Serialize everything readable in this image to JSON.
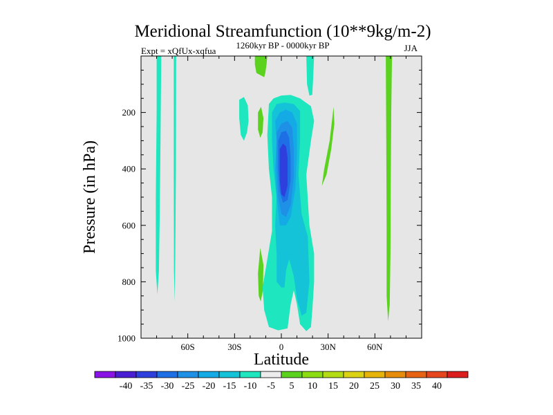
{
  "chart_data": {
    "type": "contour",
    "title": "Meridional Streamfunction (10**9kg/m-2)",
    "experiment": "Expt = xQfUx-xqfua",
    "period": "1260kyr BP - 0000kyr BP",
    "season": "JJA",
    "xlabel": "Latitude",
    "ylabel": "Pressure (in hPa)",
    "xlim": [
      -90,
      90
    ],
    "ylim": [
      0,
      1000
    ],
    "y_inverted": true,
    "x_ticks": [
      {
        "value": -60,
        "label": "60S"
      },
      {
        "value": -30,
        "label": "30S"
      },
      {
        "value": 0,
        "label": "0"
      },
      {
        "value": 30,
        "label": "30N"
      },
      {
        "value": 60,
        "label": "60N"
      }
    ],
    "y_ticks": [
      {
        "value": 200,
        "label": "200"
      },
      {
        "value": 400,
        "label": "400"
      },
      {
        "value": 600,
        "label": "600"
      },
      {
        "value": 800,
        "label": "800"
      },
      {
        "value": 1000,
        "label": "1000"
      }
    ],
    "background_color": "#e6e6e6",
    "colorbar": {
      "colors": [
        "#8a14e6",
        "#4a1ed2",
        "#2f3fde",
        "#1e6ee6",
        "#1e90e6",
        "#14aae6",
        "#14c3d7",
        "#1ee6be",
        "#ececec",
        "#5ad21e",
        "#8cdc14",
        "#b4dc14",
        "#dcd214",
        "#e6b40a",
        "#e68c0a",
        "#e66414",
        "#e6461e",
        "#dc1e1e"
      ],
      "labels": [
        "-40",
        "-35",
        "-30",
        "-25",
        "-20",
        "-15",
        "-10",
        "-5",
        "5",
        "10",
        "15",
        "20",
        "25",
        "30",
        "35",
        "40"
      ]
    },
    "regions": [
      {
        "color": "#1ee6be",
        "lat_lon": [
          [
            -80,
            0
          ],
          [
            -77,
            0
          ],
          [
            -77.5,
            300
          ],
          [
            -78,
            560
          ],
          [
            -78.5,
            760
          ],
          [
            -79.5,
            845
          ],
          [
            -80.5,
            760
          ],
          [
            -80.5,
            500
          ],
          [
            -80,
            200
          ]
        ]
      },
      {
        "color": "#1ee6be",
        "lat_lon": [
          [
            -69,
            0
          ],
          [
            -67.5,
            0
          ],
          [
            -67.6,
            400
          ],
          [
            -68,
            700
          ],
          [
            -68.3,
            870
          ],
          [
            -68.9,
            760
          ],
          [
            -69,
            400
          ]
        ]
      },
      {
        "color": "#5ad21e",
        "lat_lon": [
          [
            -17,
            0
          ],
          [
            -9,
            0
          ],
          [
            -9.5,
            30
          ],
          [
            -10.3,
            60
          ],
          [
            -11,
            75
          ],
          [
            -16,
            60
          ],
          [
            -17,
            30
          ]
        ]
      },
      {
        "color": "#1ee6be",
        "lat_lon": [
          [
            -27,
            155
          ],
          [
            -24,
            145
          ],
          [
            -21.5,
            175
          ],
          [
            -21,
            230
          ],
          [
            -22,
            270
          ],
          [
            -24,
            300
          ],
          [
            -26,
            280
          ],
          [
            -27,
            220
          ]
        ]
      },
      {
        "color": "#5ad21e",
        "lat_lon": [
          [
            -15,
            200
          ],
          [
            -13,
            180
          ],
          [
            -11.5,
            220
          ],
          [
            -12,
            270
          ],
          [
            -13.5,
            290
          ],
          [
            -15,
            260
          ]
        ]
      },
      {
        "color": "#5ad21e",
        "lat_lon": [
          [
            -15,
            770
          ],
          [
            -13.5,
            680
          ],
          [
            -11.5,
            740
          ],
          [
            -11.8,
            830
          ],
          [
            -13.2,
            870
          ],
          [
            -14.5,
            850
          ]
        ]
      },
      {
        "color": "#1ee6be",
        "lat_lon": [
          [
            -8,
            170
          ],
          [
            -5,
            150
          ],
          [
            0,
            140
          ],
          [
            6,
            138
          ],
          [
            12,
            150
          ],
          [
            19,
            178
          ],
          [
            21,
            230
          ],
          [
            19,
            300
          ],
          [
            16,
            420
          ],
          [
            18,
            600
          ],
          [
            21,
            700
          ],
          [
            21,
            800
          ],
          [
            20,
            890
          ],
          [
            19,
            960
          ],
          [
            16,
            975
          ],
          [
            12,
            950
          ],
          [
            10,
            880
          ],
          [
            8,
            830
          ],
          [
            6,
            880
          ],
          [
            4,
            965
          ],
          [
            -2,
            972
          ],
          [
            -8,
            960
          ],
          [
            -11,
            900
          ],
          [
            -12,
            820
          ],
          [
            -9,
            720
          ],
          [
            -6,
            620
          ],
          [
            -6,
            500
          ],
          [
            -8,
            400
          ],
          [
            -9,
            280
          ]
        ]
      },
      {
        "color": "#14c3d7",
        "lat_lon": [
          [
            -6,
            200
          ],
          [
            -3,
            170
          ],
          [
            2,
            165
          ],
          [
            8,
            170
          ],
          [
            12,
            195
          ],
          [
            12,
            300
          ],
          [
            11,
            420
          ],
          [
            13,
            560
          ],
          [
            17,
            640
          ],
          [
            18,
            800
          ],
          [
            16,
            910
          ],
          [
            13,
            920
          ],
          [
            10,
            860
          ],
          [
            8,
            780
          ],
          [
            5,
            720
          ],
          [
            3,
            760
          ],
          [
            2,
            820
          ],
          [
            0,
            820
          ],
          [
            -3,
            800
          ],
          [
            -3,
            700
          ],
          [
            -4,
            600
          ],
          [
            -3,
            500
          ],
          [
            -5,
            400
          ],
          [
            -6,
            300
          ]
        ]
      },
      {
        "color": "#14aae6",
        "lat_lon": [
          [
            -4,
            230
          ],
          [
            -1,
            200
          ],
          [
            3,
            190
          ],
          [
            7,
            200
          ],
          [
            10,
            240
          ],
          [
            10,
            350
          ],
          [
            9,
            470
          ],
          [
            6,
            570
          ],
          [
            3,
            600
          ],
          [
            -1,
            600
          ],
          [
            -3,
            500
          ],
          [
            -4,
            400
          ],
          [
            -3,
            300
          ]
        ]
      },
      {
        "color": "#1e90e6",
        "lat_lon": [
          [
            -3,
            270
          ],
          [
            0,
            240
          ],
          [
            4,
            230
          ],
          [
            7,
            255
          ],
          [
            8,
            330
          ],
          [
            8,
            430
          ],
          [
            6,
            530
          ],
          [
            3,
            570
          ],
          [
            0,
            560
          ],
          [
            -2,
            500
          ],
          [
            -3,
            400
          ]
        ]
      },
      {
        "color": "#1e6ee6",
        "lat_lon": [
          [
            -2,
            300
          ],
          [
            0,
            270
          ],
          [
            3,
            265
          ],
          [
            5,
            290
          ],
          [
            6,
            360
          ],
          [
            6,
            440
          ],
          [
            4,
            510
          ],
          [
            1,
            520
          ],
          [
            -1,
            480
          ],
          [
            -2,
            400
          ]
        ]
      },
      {
        "color": "#2f3fde",
        "lat_lon": [
          [
            -1,
            330
          ],
          [
            1,
            310
          ],
          [
            3,
            320
          ],
          [
            4,
            360
          ],
          [
            4,
            460
          ],
          [
            2,
            500
          ],
          [
            0,
            490
          ],
          [
            -1,
            440
          ]
        ]
      },
      {
        "color": "#14c3d7",
        "lat_lon": [
          [
            14,
            700
          ],
          [
            15.5,
            680
          ],
          [
            17,
            720
          ],
          [
            17.2,
            820
          ],
          [
            15.5,
            880
          ],
          [
            14.2,
            840
          ]
        ]
      },
      {
        "color": "#1ee6be",
        "lat_lon": [
          [
            16,
            0
          ],
          [
            21,
            0
          ],
          [
            20.2,
            100
          ],
          [
            19.8,
            138
          ],
          [
            18,
            140
          ],
          [
            16.5,
            100
          ]
        ]
      },
      {
        "color": "#5ad21e",
        "lat_lon": [
          [
            26,
            460
          ],
          [
            27.5,
            400
          ],
          [
            31,
            300
          ],
          [
            33.5,
            180
          ],
          [
            34,
            240
          ],
          [
            32,
            330
          ],
          [
            29,
            420
          ]
        ]
      },
      {
        "color": "#5ad21e",
        "lat_lon": [
          [
            67,
            0
          ],
          [
            71,
            0
          ],
          [
            70.5,
            200
          ],
          [
            70.2,
            450
          ],
          [
            70,
            700
          ],
          [
            69.5,
            880
          ],
          [
            68.5,
            940
          ],
          [
            67.5,
            850
          ],
          [
            67.5,
            600
          ],
          [
            67.3,
            300
          ]
        ]
      }
    ]
  }
}
